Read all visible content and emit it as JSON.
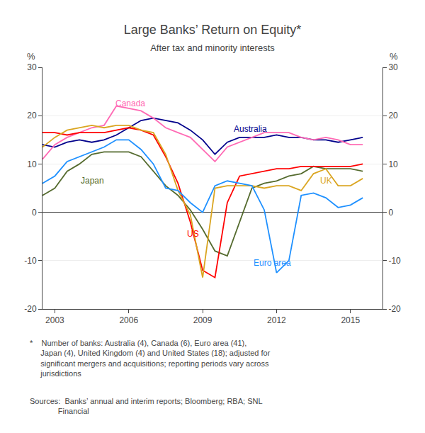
{
  "chart_data": {
    "type": "line",
    "title": "Large Banks’ Return on Equity*",
    "subtitle": "After tax and minority interests",
    "ylabel": "%",
    "y2label": "%",
    "x": [
      2002.5,
      2003.0,
      2003.5,
      2004.0,
      2004.5,
      2005.0,
      2005.5,
      2006.0,
      2006.5,
      2007.0,
      2007.5,
      2008.0,
      2008.5,
      2009.0,
      2009.5,
      2010.0,
      2010.5,
      2011.0,
      2011.5,
      2012.0,
      2012.5,
      2013.0,
      2013.5,
      2014.0,
      2014.5,
      2015.0,
      2015.5
    ],
    "series": [
      {
        "name": "Australia",
        "color": "#00008B",
        "values": [
          14.0,
          13.5,
          14.5,
          15.0,
          14.5,
          15.0,
          16.0,
          17.5,
          19.0,
          19.5,
          19.0,
          18.5,
          17.0,
          15.0,
          12.0,
          14.5,
          15.5,
          15.5,
          15.5,
          16.0,
          15.5,
          15.5,
          15.0,
          15.0,
          14.5,
          15.0,
          15.5
        ]
      },
      {
        "name": "Canada",
        "color": "#FF69B4",
        "values": [
          11.0,
          14.0,
          15.5,
          16.5,
          17.5,
          18.0,
          22.0,
          21.5,
          21.0,
          19.5,
          17.5,
          16.5,
          15.5,
          13.0,
          10.5,
          13.5,
          14.5,
          15.5,
          16.5,
          16.5,
          16.5,
          15.5,
          15.0,
          15.5,
          15.0,
          14.0,
          14.0
        ]
      },
      {
        "name": "Japan",
        "color": "#556B2F",
        "values": [
          3.5,
          5.0,
          8.5,
          10.0,
          12.0,
          12.5,
          12.5,
          12.5,
          11.5,
          8.5,
          5.5,
          3.5,
          0.5,
          -3.5,
          -8.0,
          -9.0,
          -2.0,
          5.0,
          6.0,
          6.5,
          7.5,
          8.0,
          9.5,
          9.0,
          9.0,
          9.0,
          8.5
        ]
      },
      {
        "name": "US",
        "color": "#FF0000",
        "values": [
          16.5,
          16.5,
          16.0,
          16.5,
          16.5,
          16.5,
          17.0,
          17.5,
          17.0,
          16.0,
          11.5,
          6.0,
          -2.0,
          -12.0,
          -13.5,
          2.0,
          7.5,
          8.0,
          8.5,
          9.0,
          9.0,
          9.5,
          9.5,
          9.5,
          9.5,
          9.5,
          10.0
        ]
      },
      {
        "name": "UK",
        "color": "#DAA520",
        "values": [
          13.5,
          15.5,
          17.0,
          17.5,
          18.0,
          17.5,
          18.0,
          18.0,
          17.0,
          16.5,
          12.0,
          4.5,
          -0.5,
          -13.5,
          5.0,
          5.5,
          5.5,
          5.5,
          5.0,
          5.5,
          5.5,
          4.5,
          8.0,
          9.0,
          5.5,
          5.5,
          7.0
        ]
      },
      {
        "name": "Euro area",
        "color": "#1E90FF",
        "values": [
          6.0,
          7.5,
          10.5,
          11.5,
          12.5,
          13.5,
          15.0,
          15.0,
          13.0,
          10.0,
          5.0,
          4.5,
          2.0,
          0.0,
          5.5,
          6.5,
          6.0,
          5.5,
          0.5,
          -12.5,
          -10.0,
          3.5,
          4.0,
          3.0,
          1.0,
          1.5,
          3.0
        ]
      }
    ],
    "annotations": [
      {
        "text": "Australia",
        "x": 2010.2,
        "y": 17.2,
        "color": "#00008B"
      },
      {
        "text": "Canada",
        "x": 2005.4,
        "y": 22.5,
        "color": "#FF69B4"
      },
      {
        "text": "Japan",
        "x": 2004.0,
        "y": 6.5,
        "color": "#556B2F"
      },
      {
        "text": "US",
        "x": 2008.3,
        "y": -4.5,
        "color": "#FF0000"
      },
      {
        "text": "UK",
        "x": 2013.7,
        "y": 6.5,
        "color": "#DAA520"
      },
      {
        "text": "Euro area",
        "x": 2011.0,
        "y": -10.5,
        "color": "#1E90FF"
      }
    ],
    "footnotes": [
      "*    Number of banks: Australia (4), Canada (6), Euro area (41),\n     Japan (4), United Kingdom (4) and United States (18); adjusted for\n     significant mergers and acquisitions; reporting periods vary across\n     jurisdictions",
      "Sources:  Banks’ annual and interim reports; Bloomberg; RBA; SNL\n             Financial"
    ],
    "xlim": [
      2002.5,
      2016.3
    ],
    "xticks": [
      2003,
      2006,
      2009,
      2012,
      2015
    ],
    "ylim": [
      -20,
      30
    ],
    "yticks": [
      -20,
      -10,
      0,
      10,
      20,
      30
    ],
    "y2lim": [
      -20,
      30
    ],
    "y2ticks": [
      -20,
      -10,
      0,
      10,
      20,
      30
    ],
    "grid": "y"
  }
}
